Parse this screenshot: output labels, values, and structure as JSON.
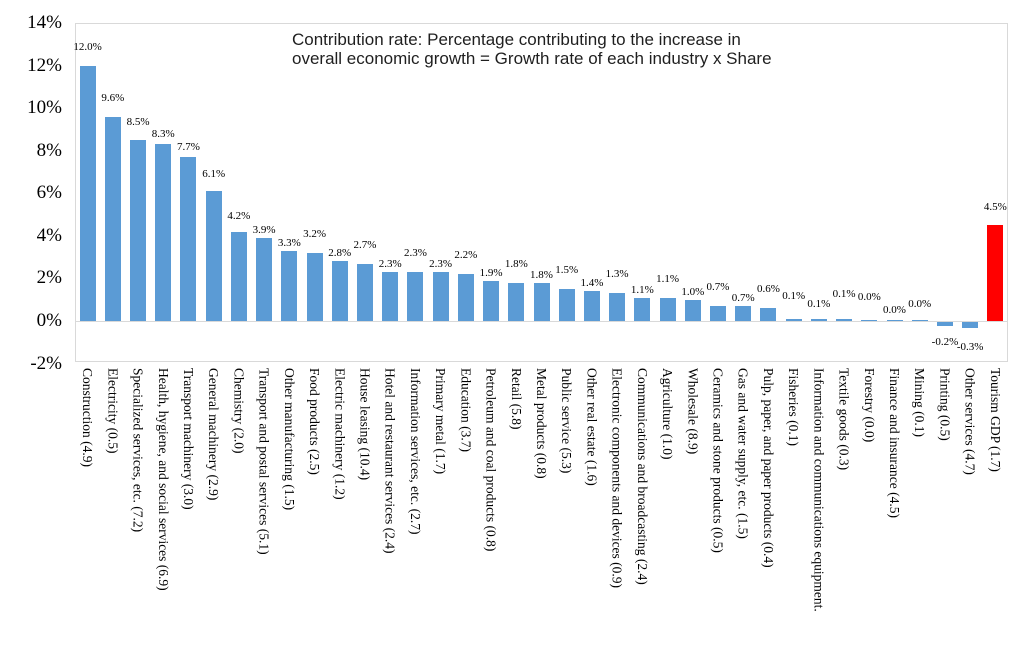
{
  "title": {
    "line1": "Contribution rate: Percentage contributing to the increase in",
    "line2": "overall economic growth = Growth rate of each industry x Share"
  },
  "chart_data": {
    "type": "bar",
    "title": "Contribution rate: Percentage contributing to the increase in overall economic growth = Growth rate of each industry x Share",
    "xlabel": "",
    "ylabel": "",
    "ylim": [
      -2,
      14
    ],
    "grid": false,
    "legend": "none",
    "bar_color": "#5b9bd5",
    "highlight_color": "#ff0000",
    "highlight_index": 36,
    "axis_color": "#d9d9d9",
    "yticks": [
      {
        "label": "14%",
        "value": 14
      },
      {
        "label": "12%",
        "value": 12
      },
      {
        "label": "10%",
        "value": 10
      },
      {
        "label": "8%",
        "value": 8
      },
      {
        "label": "6%",
        "value": 6
      },
      {
        "label": "4%",
        "value": 4
      },
      {
        "label": "2%",
        "value": 2
      },
      {
        "label": "0%",
        "value": 0
      },
      {
        "label": "-2%",
        "value": -2
      }
    ],
    "categories": [
      "Construction (4.9)",
      "Electricity (0.5)",
      "Specialized services, etc. (7.2)",
      "Health, hygiene, and social services (6.9)",
      "Transport machinery (3.0)",
      "General machinery (2.9)",
      "Chemistry (2.0)",
      "Transport and postal services (5.1)",
      "Other manufacturing (1.5)",
      "Food products (2.5)",
      "Electric machinery (1.2)",
      "House leasing (10.4)",
      "Hotel and restaurant services (2.4)",
      "Information services, etc. (2.7)",
      "Primary metal (1.7)",
      "Education (3.7)",
      "Petroleum and coal products (0.8)",
      "Retail (5.8)",
      "Metal products (0.8)",
      "Public service (5.3)",
      "Other real estate (1.6)",
      "Electronic components and devices (0.9)",
      "Communications and broadcasting (2.4)",
      "Agriculture (1.0)",
      "Wholesale (8.9)",
      "Ceramics and stone products (0.5)",
      "Gas and water supply, etc. (1.5)",
      "Pulp, paper, and paper products (0.4)",
      "Fisheries (0.1)",
      "Information and communications equipment.",
      "Textile goods (0.3)",
      "Forestry (0.0)",
      "Finance and insurance (4.5)",
      "Mining (0.1)",
      "Printing (0.5)",
      "Other services (4.7)",
      "Tourism GDP (1.7)"
    ],
    "values": [
      12.0,
      9.6,
      8.5,
      8.3,
      7.7,
      6.1,
      4.2,
      3.9,
      3.3,
      3.2,
      2.8,
      2.7,
      2.3,
      2.3,
      2.3,
      2.2,
      1.9,
      1.8,
      1.8,
      1.5,
      1.4,
      1.3,
      1.1,
      1.1,
      1.0,
      0.7,
      0.7,
      0.6,
      0.1,
      0.1,
      0.1,
      0.0,
      0.0,
      0.0,
      -0.2,
      -0.3,
      4.5
    ],
    "value_labels": [
      "12.0%",
      "9.6%",
      "8.5%",
      "8.3%",
      "7.7%",
      "6.1%",
      "4.2%",
      "3.9%",
      "3.3%",
      "3.2%",
      "2.8%",
      "2.7%",
      "2.3%",
      "2.3%",
      "2.3%",
      "2.2%",
      "1.9%",
      "1.8%",
      "1.8%",
      "1.5%",
      "1.4%",
      "1.3%",
      "1.1%",
      "1.1%",
      "1.0%",
      "0.7%",
      "0.7%",
      "0.6%",
      "0.1%",
      "0.1%",
      "0.1%",
      "0.0%",
      "0.0%",
      "0.0%",
      "-0.2%",
      "-0.3%",
      "4.5%"
    ]
  }
}
